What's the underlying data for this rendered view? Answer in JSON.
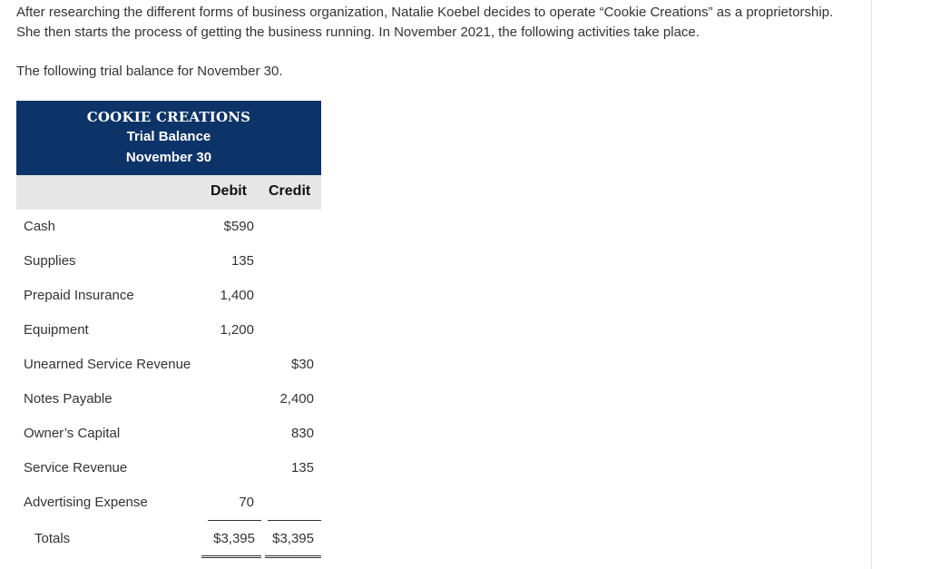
{
  "intro_text": "After researching the different forms of business organization, Natalie Koebel decides to operate “Cookie Creations” as a proprietorship. She then starts the process of getting the business running. In November 2021, the following activities take place.",
  "lead_text": "The following trial balance for November 30.",
  "trial_balance": {
    "company": "COOKIE CREATIONS",
    "statement": "Trial Balance",
    "date": "November 30",
    "debit_label": "Debit",
    "credit_label": "Credit",
    "rows": [
      {
        "account": "Cash",
        "debit": "$590",
        "credit": ""
      },
      {
        "account": "Supplies",
        "debit": "135",
        "credit": ""
      },
      {
        "account": "Prepaid Insurance",
        "debit": "1,400",
        "credit": ""
      },
      {
        "account": "Equipment",
        "debit": "1,200",
        "credit": ""
      },
      {
        "account": "Unearned Service Revenue",
        "debit": "",
        "credit": "$30"
      },
      {
        "account": "Notes Payable",
        "debit": "",
        "credit": "2,400"
      },
      {
        "account": "Owner’s Capital",
        "debit": "",
        "credit": "830"
      },
      {
        "account": "Service Revenue",
        "debit": "",
        "credit": "135"
      },
      {
        "account": "Advertising Expense",
        "debit": "70",
        "credit": ""
      }
    ],
    "totals": {
      "label": "Totals",
      "debit": "$3,395",
      "credit": "$3,395"
    }
  },
  "colors": {
    "header_bg": "#0c3468",
    "colhead_bg": "#e6e6e6"
  }
}
